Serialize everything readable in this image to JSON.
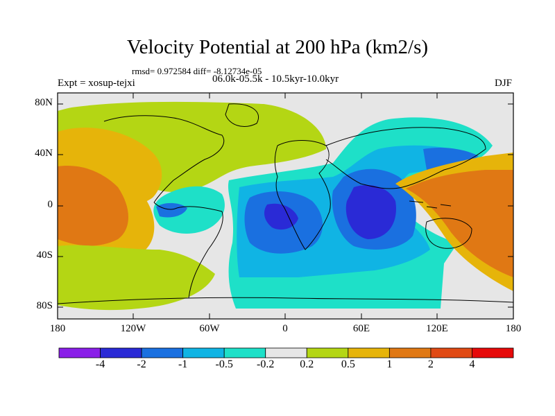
{
  "title": "Velocity Potential at 200 hPa (km2/s)",
  "stats": "rmsd= 0.972584 diff= -8.12734e-05",
  "experiment": "Expt = xosup-tejxi",
  "period": "06.0k-05.5k - 10.5kyr-10.0kyr",
  "season": "DJF",
  "lat_labels": [
    "80N",
    "40N",
    "0",
    "40S",
    "80S"
  ],
  "lon_labels": [
    "180",
    "120W",
    "60W",
    "0",
    "60E",
    "120E",
    "180"
  ],
  "colorbar": {
    "labels": [
      "-4",
      "-2",
      "-1",
      "-0.5",
      "-0.2",
      "0.2",
      "0.5",
      "1",
      "2",
      "4"
    ],
    "colors": [
      "#8a1fe8",
      "#2a2ad6",
      "#1a70e0",
      "#10b4e4",
      "#1ee0c8",
      "#e6e6e6",
      "#b4d614",
      "#e6b40a",
      "#e07814",
      "#e04a14",
      "#e60a0a"
    ]
  }
}
